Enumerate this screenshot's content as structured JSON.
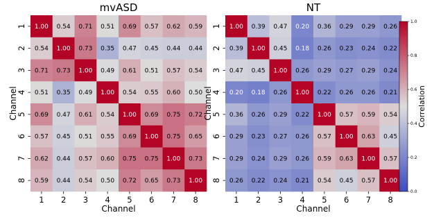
{
  "chart_data": {
    "type": "heatmap",
    "colorbar": {
      "label": "Correlation",
      "ticks": [
        "0.0",
        "0.2",
        "0.4",
        "0.6",
        "0.8",
        "1.0"
      ],
      "range": [
        0,
        1
      ],
      "colormap": {
        "low": "#3b4cc0",
        "mid": "#dddddd",
        "high": "#b40426"
      }
    },
    "panels": [
      {
        "title": "mvASD",
        "xlabel": "Channel",
        "ylabel": "Channel",
        "x_ticks": [
          "1",
          "2",
          "3",
          "4",
          "5",
          "6",
          "7",
          "8"
        ],
        "y_ticks": [
          "1",
          "2",
          "3",
          "4",
          "5",
          "6",
          "7",
          "8"
        ],
        "values": [
          [
            1.0,
            0.54,
            0.71,
            0.51,
            0.69,
            0.57,
            0.62,
            0.59
          ],
          [
            0.54,
            1.0,
            0.73,
            0.35,
            0.47,
            0.45,
            0.44,
            0.44
          ],
          [
            0.71,
            0.73,
            1.0,
            0.49,
            0.61,
            0.51,
            0.57,
            0.54
          ],
          [
            0.51,
            0.35,
            0.49,
            1.0,
            0.54,
            0.55,
            0.6,
            0.5
          ],
          [
            0.69,
            0.47,
            0.61,
            0.54,
            1.0,
            0.69,
            0.75,
            0.72
          ],
          [
            0.57,
            0.45,
            0.51,
            0.55,
            0.69,
            1.0,
            0.75,
            0.65
          ],
          [
            0.62,
            0.44,
            0.57,
            0.6,
            0.75,
            0.75,
            1.0,
            0.73
          ],
          [
            0.59,
            0.44,
            0.54,
            0.5,
            0.72,
            0.65,
            0.73,
            1.0
          ]
        ]
      },
      {
        "title": "NT",
        "xlabel": "Channel",
        "ylabel": "Channel",
        "x_ticks": [
          "1",
          "2",
          "3",
          "4",
          "5",
          "6",
          "7",
          "8"
        ],
        "y_ticks": [
          "1",
          "2",
          "3",
          "4",
          "5",
          "6",
          "7",
          "8"
        ],
        "values": [
          [
            1.0,
            0.39,
            0.47,
            0.2,
            0.36,
            0.29,
            0.29,
            0.26
          ],
          [
            0.39,
            1.0,
            0.45,
            0.18,
            0.26,
            0.23,
            0.24,
            0.22
          ],
          [
            0.47,
            0.45,
            1.0,
            0.26,
            0.29,
            0.27,
            0.29,
            0.24
          ],
          [
            0.2,
            0.18,
            0.26,
            1.0,
            0.22,
            0.26,
            0.26,
            0.21
          ],
          [
            0.36,
            0.26,
            0.29,
            0.22,
            1.0,
            0.57,
            0.59,
            0.54
          ],
          [
            0.29,
            0.23,
            0.27,
            0.26,
            0.57,
            1.0,
            0.63,
            0.45
          ],
          [
            0.29,
            0.24,
            0.29,
            0.26,
            0.59,
            0.63,
            1.0,
            0.57
          ],
          [
            0.26,
            0.22,
            0.24,
            0.21,
            0.54,
            0.45,
            0.57,
            1.0
          ]
        ]
      }
    ]
  }
}
